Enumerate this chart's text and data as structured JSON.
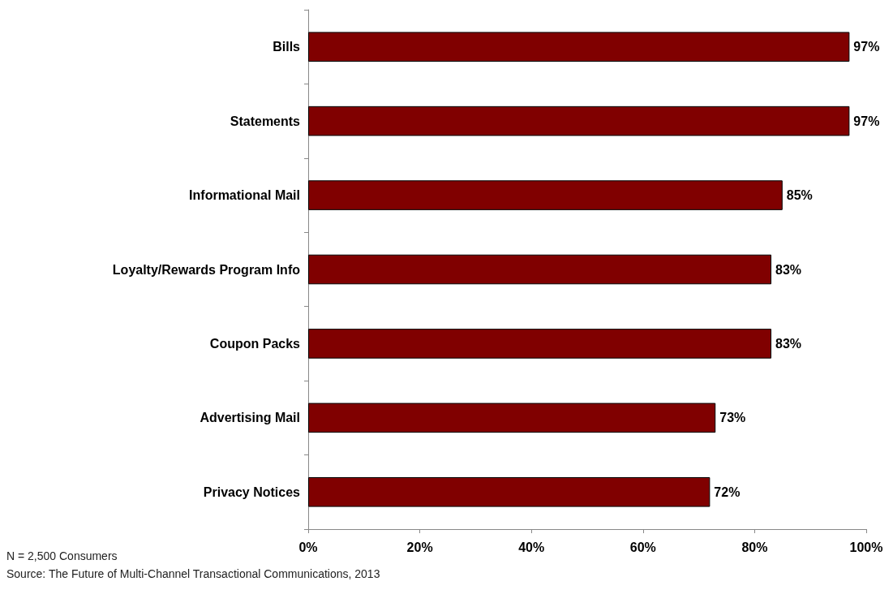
{
  "chart_data": {
    "type": "bar",
    "orientation": "horizontal",
    "categories": [
      "Bills",
      "Statements",
      "Informational Mail",
      "Loyalty/Rewards Program Info",
      "Coupon Packs",
      "Advertising Mail",
      "Privacy Notices"
    ],
    "values": [
      97,
      97,
      85,
      83,
      83,
      73,
      72
    ],
    "value_labels": [
      "97%",
      "97%",
      "85%",
      "83%",
      "83%",
      "73%",
      "72%"
    ],
    "color": "#800000",
    "xlim": [
      0,
      100
    ],
    "xticks": [
      {
        "value": 0,
        "label": "0%"
      },
      {
        "value": 20,
        "label": "20%"
      },
      {
        "value": 40,
        "label": "40%"
      },
      {
        "value": 60,
        "label": "60%"
      },
      {
        "value": 80,
        "label": "80%"
      },
      {
        "value": 100,
        "label": "100%"
      }
    ],
    "grid": false,
    "annotations": [
      "N = 2,500 Consumers",
      "Source: The Future of Multi-Channel Transactional Communications, 2013"
    ]
  }
}
